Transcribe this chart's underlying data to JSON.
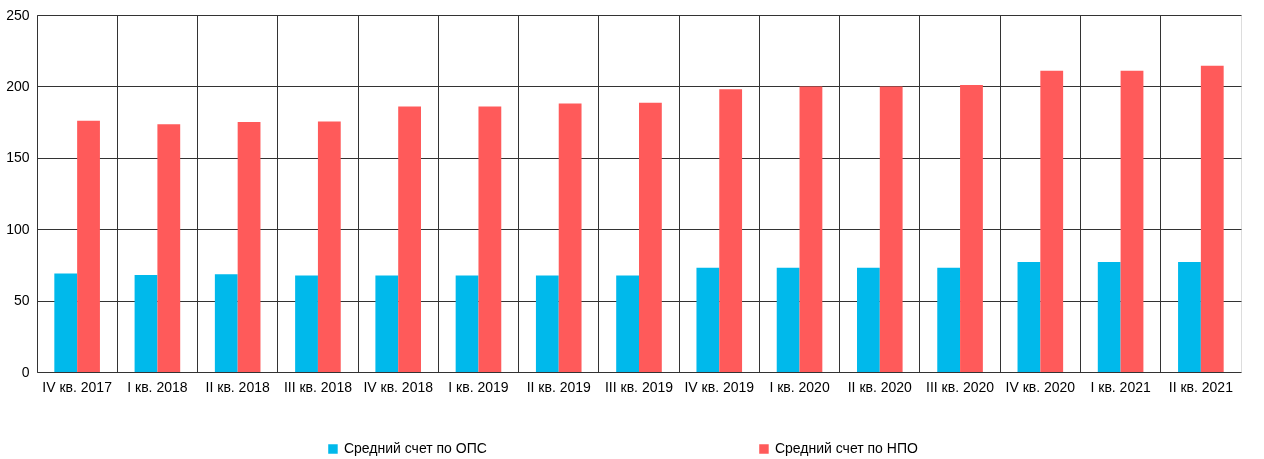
{
  "chart_data": {
    "type": "bar",
    "categories": [
      "IV кв. 2017",
      "I кв. 2018",
      "II кв. 2018",
      "III кв. 2018",
      "IV кв. 2018",
      "I кв. 2019",
      "II кв. 2019",
      "III кв. 2019",
      "IV кв. 2019",
      "I кв. 2020",
      "II кв. 2020",
      "III кв. 2020",
      "IV кв. 2020",
      "I кв. 2021",
      "II кв. 2021"
    ],
    "series": [
      {
        "name": "Средний счет по ОПС",
        "color": "#00b9eb",
        "values": [
          69,
          68,
          68.5,
          67.5,
          67.5,
          67.5,
          67.5,
          67.5,
          73,
          73,
          73,
          73,
          77,
          77,
          77
        ]
      },
      {
        "name": "Средний счет по НПО",
        "color": "#ff5a5a",
        "values": [
          176,
          173.5,
          175,
          175.5,
          186,
          186,
          188,
          188.5,
          198,
          200,
          200,
          201,
          211,
          211,
          214.5
        ]
      }
    ],
    "ylim": [
      0,
      250
    ],
    "yticks": [
      0,
      50,
      100,
      150,
      200,
      250
    ],
    "grid": true,
    "legend": "bottom"
  }
}
